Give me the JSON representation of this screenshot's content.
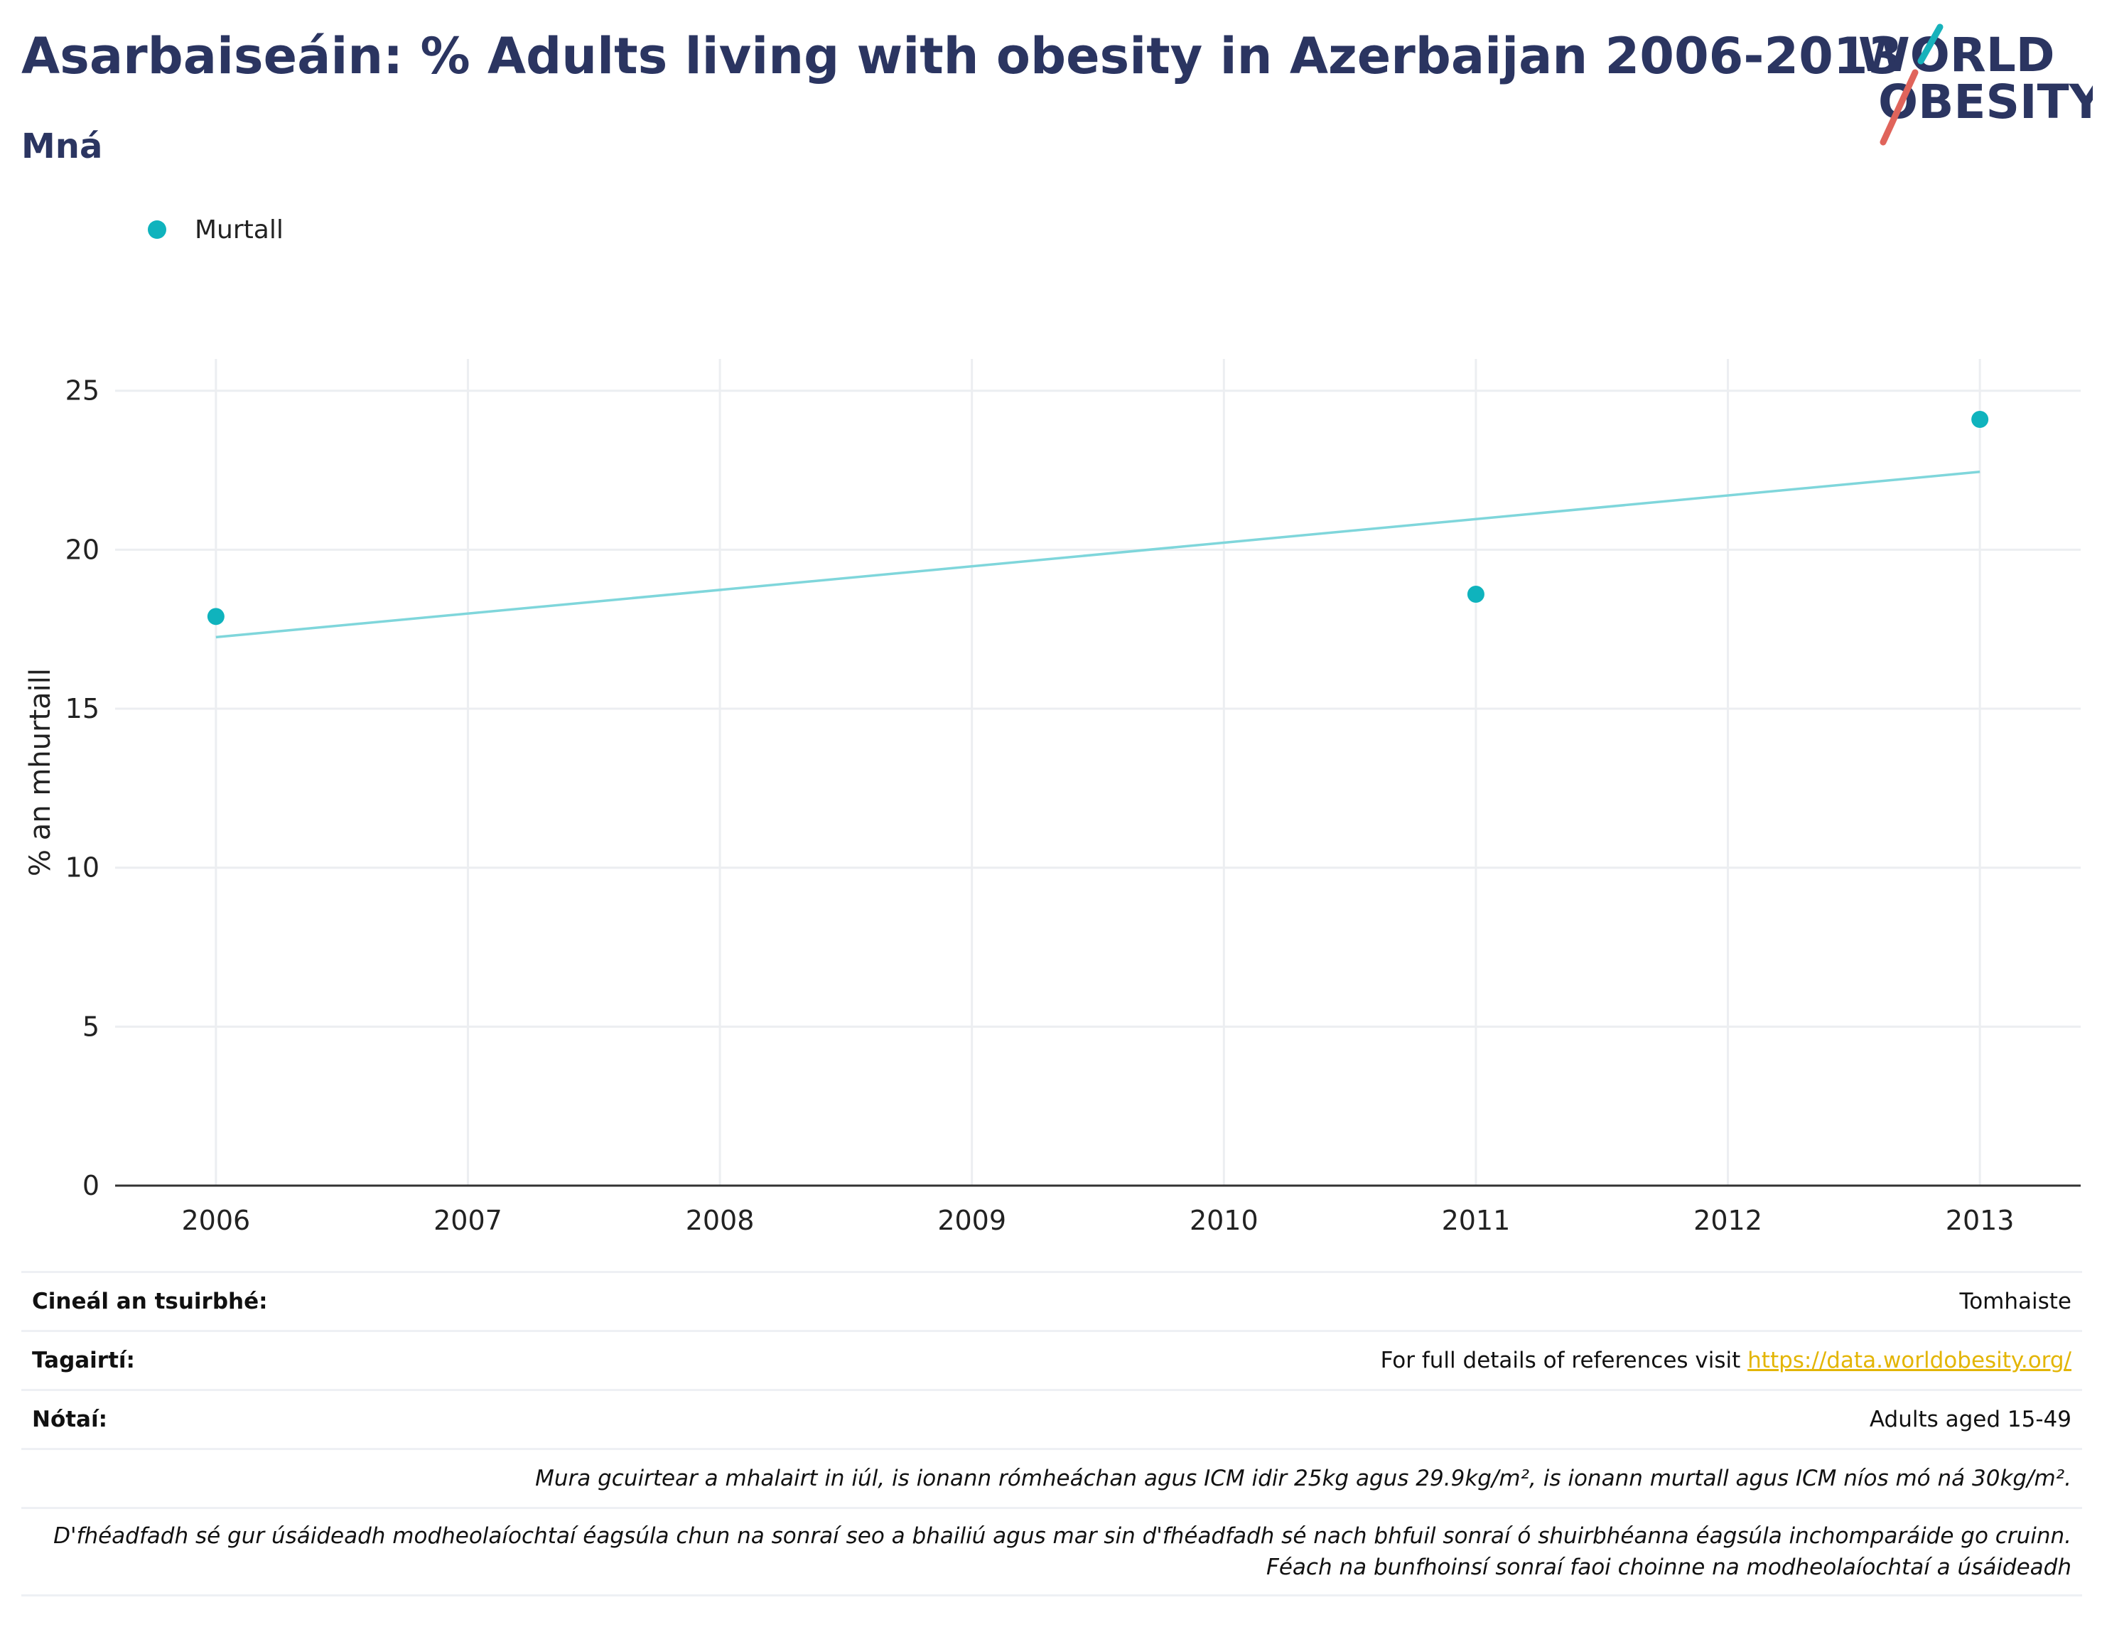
{
  "header": {
    "title": "Asarbaiseáin: % Adults living with obesity in Azerbaijan 2006-2013",
    "subtitle": "Mná"
  },
  "logo": {
    "line1": "WORLD",
    "line2": "OBESITY",
    "accent_teal": "#17b2bb",
    "accent_red": "#e0645b",
    "text_color": "#2b3561"
  },
  "colors": {
    "series": "#0fb3bd",
    "trendline": "#7fd6db",
    "grid": "#eceef1",
    "axis": "#333333"
  },
  "chart_data": {
    "type": "scatter",
    "title": "Asarbaiseáin: % Adults living with obesity in Azerbaijan 2006-2013",
    "subtitle": "Mná",
    "xlabel": "",
    "ylabel": "% an mhurtaill",
    "xlim": [
      2005.6,
      2013.4
    ],
    "ylim": [
      0,
      26
    ],
    "x_ticks": [
      2006,
      2007,
      2008,
      2009,
      2010,
      2011,
      2012,
      2013
    ],
    "y_ticks": [
      0,
      5,
      10,
      15,
      20,
      25
    ],
    "grid": true,
    "legend_position": "top-left",
    "series": [
      {
        "name": "Murtall",
        "x": [
          2006,
          2011,
          2013
        ],
        "y": [
          17.9,
          18.6,
          24.1
        ]
      }
    ],
    "trendline": {
      "x": [
        2006,
        2013
      ],
      "y": [
        17.25,
        22.45
      ]
    }
  },
  "info_table": {
    "survey_type": {
      "label": "Cineál an tsuirbhé:",
      "value": "Tomhaiste"
    },
    "references": {
      "label": "Tagairtí:",
      "value": "For full details of references visit ",
      "link": "https://data.worldobesity.org/"
    },
    "notes": {
      "label": "Nótaí:",
      "value": "Adults aged 15-49"
    },
    "bmi_note": "Mura gcuirtear a mhalairt in iúl, is ionann rómheáchan agus ICM idir 25kg agus 29.9kg/m², is ionann murtall agus ICM níos mó ná 30kg/m².",
    "method_note_1": "D'fhéadfadh sé gur úsáideadh modheolaíochtaí éagsúla chun na sonraí seo a bhailiú agus mar sin d'fhéadfadh sé nach bhfuil sonraí ó shuirbhéanna éagsúla inchomparáide go cruinn.",
    "method_note_2": "Féach na bunfhoinsí sonraí faoi choinne na modheolaíochtaí a úsáideadh"
  }
}
